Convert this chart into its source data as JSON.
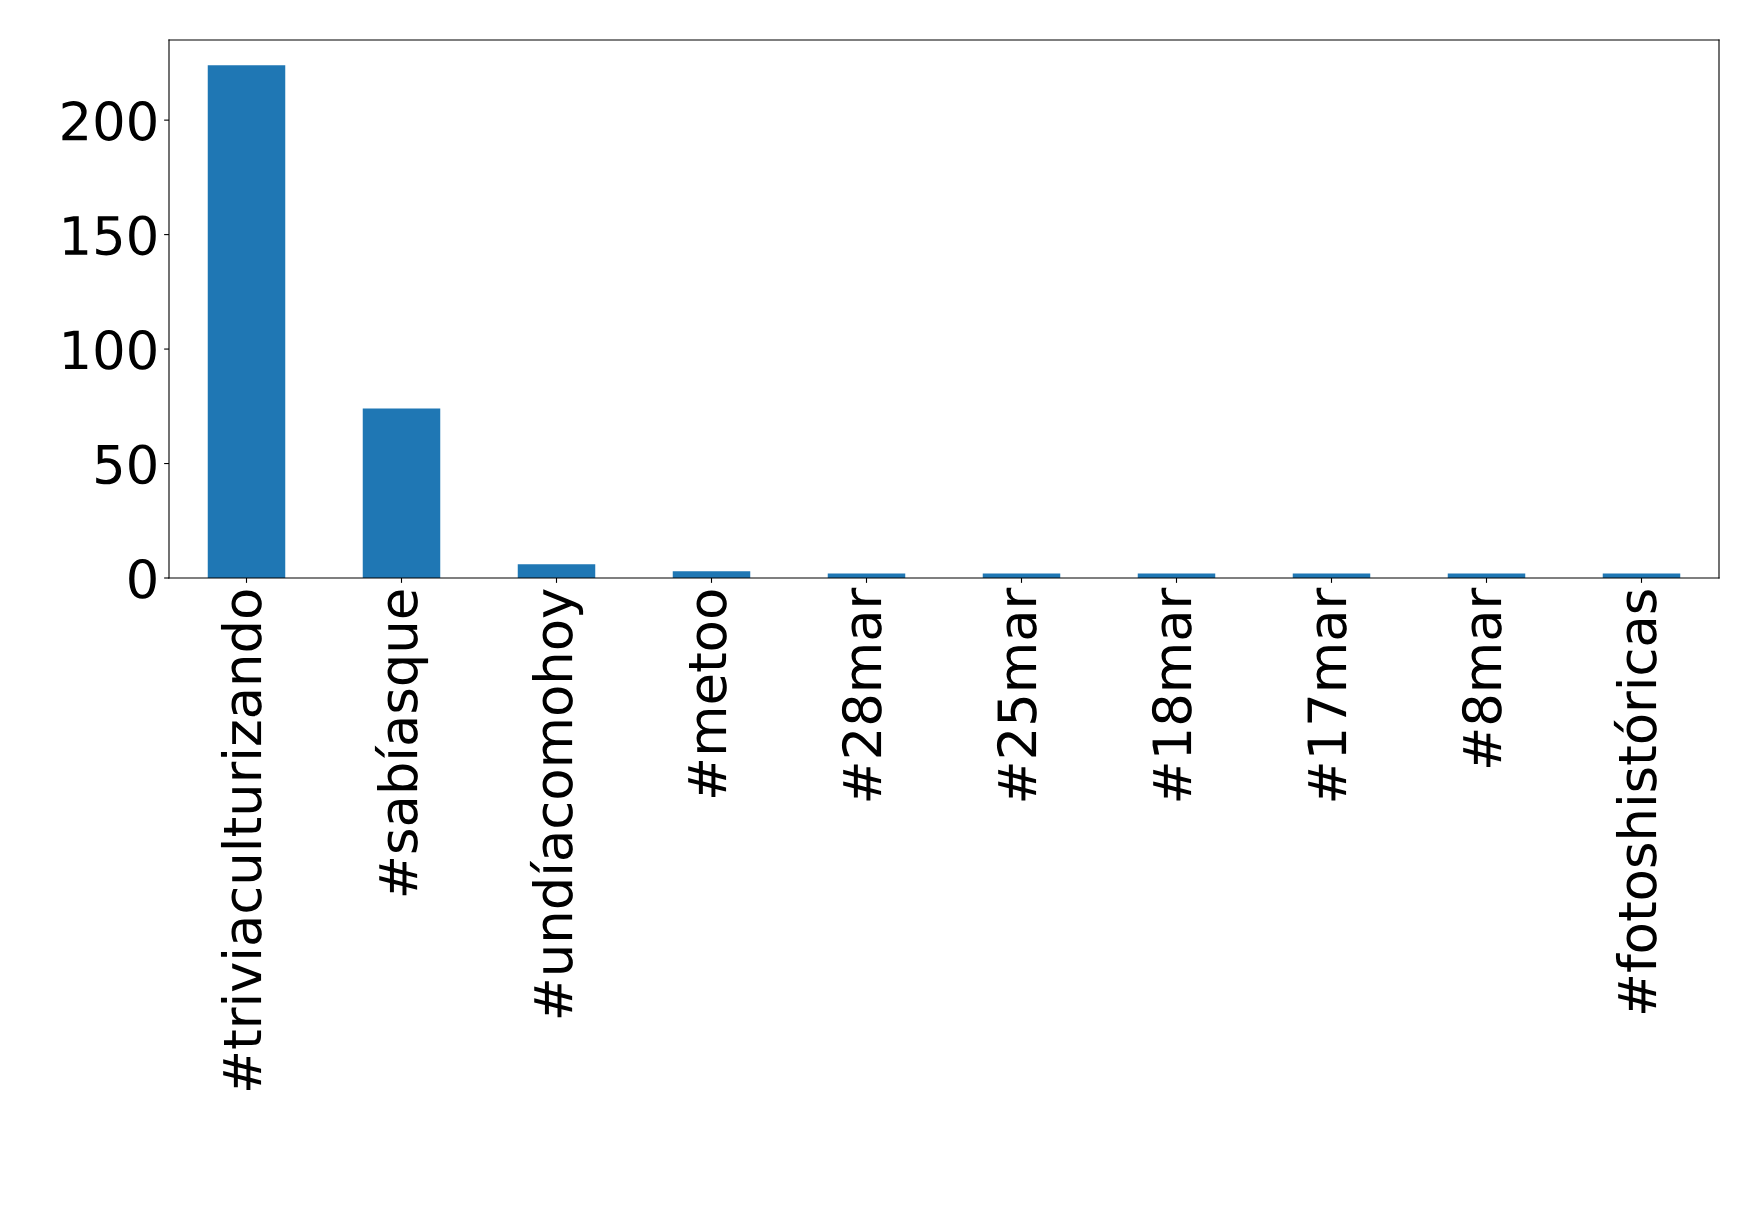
{
  "chart_data": {
    "type": "bar",
    "categories": [
      "#triviaculturizando",
      "#sabíasque",
      "#undíacomohoy",
      "#metoo",
      "#28mar",
      "#25mar",
      "#18mar",
      "#17mar",
      "#8mar",
      "#fotoshistóricas"
    ],
    "values": [
      224,
      74,
      6,
      3,
      2,
      2,
      2,
      2,
      2,
      2
    ],
    "color": "#1f77b4",
    "ylim": [
      0,
      235
    ],
    "yticks": [
      0,
      50,
      100,
      150,
      200
    ],
    "grid": false,
    "legend": false
  }
}
